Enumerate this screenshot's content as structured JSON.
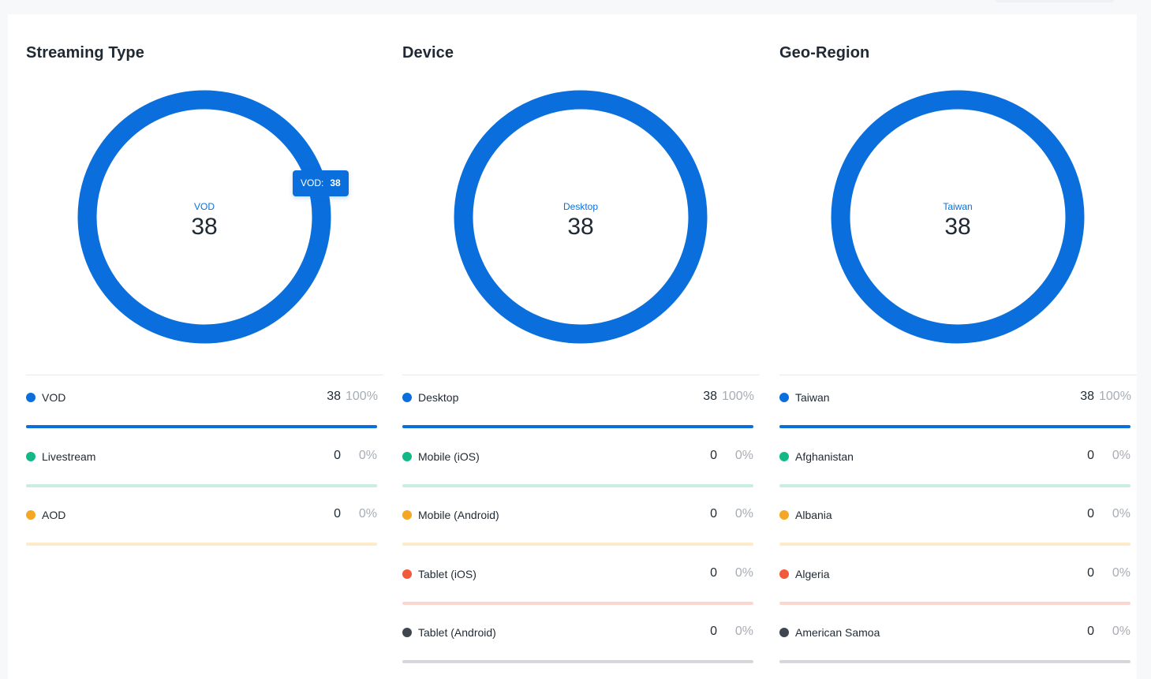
{
  "colors": {
    "blue": "#0a6fdc",
    "green": "#12b886",
    "orange": "#f5a623",
    "red": "#f25a3c",
    "gray": "#3f4650"
  },
  "chart_data": [
    {
      "type": "pie",
      "title": "Streaming Type",
      "center": {
        "label": "VOD",
        "value": "38"
      },
      "tooltip": {
        "label": "VOD:",
        "value": "38"
      },
      "series": [
        {
          "name": "VOD",
          "value": 38,
          "percent": "100%",
          "fraction": 1.0,
          "color": "#0a6fdc",
          "track": "#cfe2f8"
        },
        {
          "name": "Livestream",
          "value": 0,
          "percent": "0%",
          "fraction": 0,
          "color": "#12b886",
          "track": "#c9eee1"
        },
        {
          "name": "AOD",
          "value": 0,
          "percent": "0%",
          "fraction": 0,
          "color": "#f5a623",
          "track": "#fdebc9"
        }
      ]
    },
    {
      "type": "pie",
      "title": "Device",
      "center": {
        "label": "Desktop",
        "value": "38"
      },
      "series": [
        {
          "name": "Desktop",
          "value": 38,
          "percent": "100%",
          "fraction": 1.0,
          "color": "#0a6fdc",
          "track": "#cfe2f8"
        },
        {
          "name": "Mobile (iOS)",
          "value": 0,
          "percent": "0%",
          "fraction": 0,
          "color": "#12b886",
          "track": "#c9eee1"
        },
        {
          "name": "Mobile (Android)",
          "value": 0,
          "percent": "0%",
          "fraction": 0,
          "color": "#f5a623",
          "track": "#fdebc9"
        },
        {
          "name": "Tablet (iOS)",
          "value": 0,
          "percent": "0%",
          "fraction": 0,
          "color": "#f25a3c",
          "track": "#fcd7cf"
        },
        {
          "name": "Tablet (Android)",
          "value": 0,
          "percent": "0%",
          "fraction": 0,
          "color": "#3f4650",
          "track": "#d5d7da"
        }
      ]
    },
    {
      "type": "pie",
      "title": "Geo-Region",
      "center": {
        "label": "Taiwan",
        "value": "38"
      },
      "series": [
        {
          "name": "Taiwan",
          "value": 38,
          "percent": "100%",
          "fraction": 1.0,
          "color": "#0a6fdc",
          "track": "#cfe2f8"
        },
        {
          "name": "Afghanistan",
          "value": 0,
          "percent": "0%",
          "fraction": 0,
          "color": "#12b886",
          "track": "#c9eee1"
        },
        {
          "name": "Albania",
          "value": 0,
          "percent": "0%",
          "fraction": 0,
          "color": "#f5a623",
          "track": "#fdebc9"
        },
        {
          "name": "Algeria",
          "value": 0,
          "percent": "0%",
          "fraction": 0,
          "color": "#f25a3c",
          "track": "#fcd7cf"
        },
        {
          "name": "American Samoa",
          "value": 0,
          "percent": "0%",
          "fraction": 0,
          "color": "#3f4650",
          "track": "#d5d7da"
        }
      ]
    }
  ]
}
